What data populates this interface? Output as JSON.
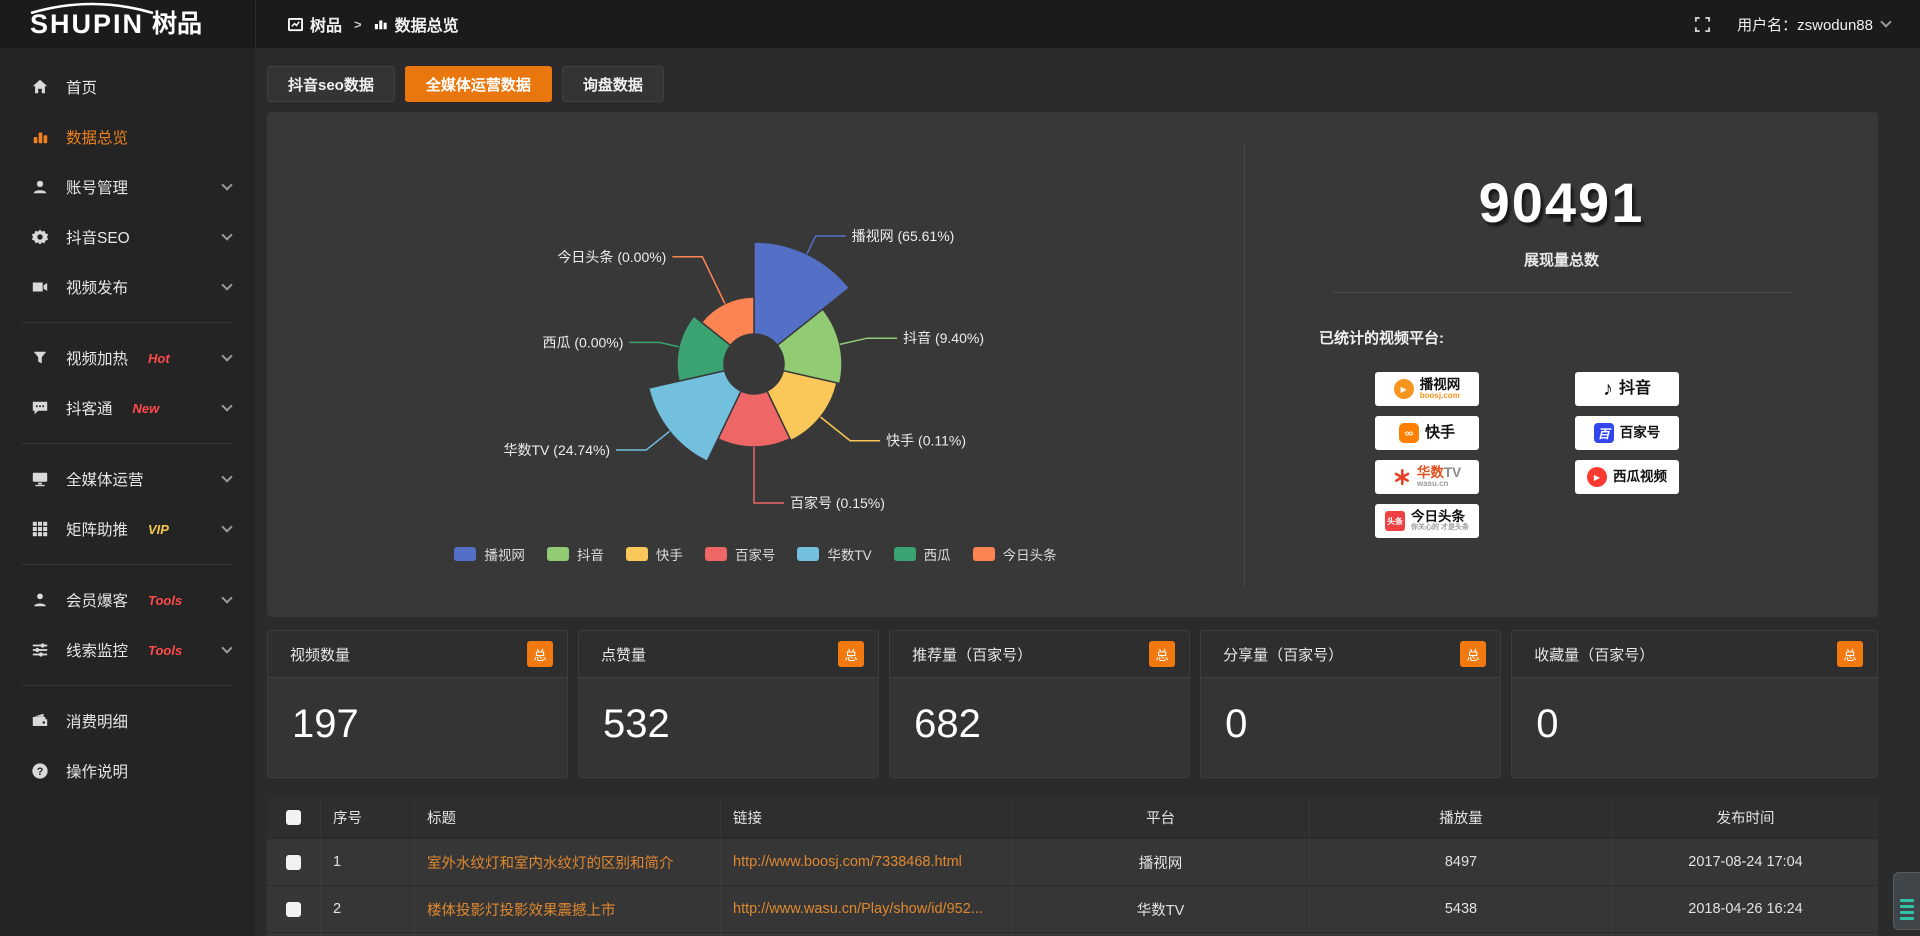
{
  "header": {
    "logo_en": "SHUPIN",
    "logo_cn": "树品",
    "breadcrumb_home": "树品",
    "breadcrumb_sep": ">",
    "breadcrumb_current": "数据总览",
    "user": "用户名：zswodun88"
  },
  "sidebar": {
    "items": [
      {
        "label": "首页"
      },
      {
        "label": "数据总览",
        "active": true
      },
      {
        "label": "账号管理"
      },
      {
        "label": "抖音SEO"
      },
      {
        "label": "视频发布"
      },
      {
        "label": "视频加热",
        "tag": "Hot",
        "tag_color": "#ff4a4a"
      },
      {
        "label": "抖客通",
        "tag": "New",
        "tag_color": "#ff4a4a"
      },
      {
        "label": "全媒体运营"
      },
      {
        "label": "矩阵助推",
        "tag": "VIP",
        "tag_color": "#f2c54b"
      },
      {
        "label": "会员爆客",
        "tag": "Tools",
        "tag_color": "#ff4a4a"
      },
      {
        "label": "线索监控",
        "tag": "Tools",
        "tag_color": "#ff4a4a"
      },
      {
        "label": "消费明细"
      },
      {
        "label": "操作说明"
      }
    ]
  },
  "tabs": [
    {
      "label": "抖音seo数据"
    },
    {
      "label": "全媒体运营数据",
      "active": true
    },
    {
      "label": "询盘数据"
    }
  ],
  "overview": {
    "total": "90491",
    "total_label": "展现量总数",
    "platforms_title": "已统计的视频平台:",
    "platforms_left": [
      {
        "name": "播视网",
        "sub": "boosj.com"
      },
      {
        "name": "快手"
      },
      {
        "name": "华数",
        "name2": "TV",
        "sub": "wasu.cn"
      },
      {
        "name": "今日头条",
        "logo_text": "头条",
        "sub": "你关心的 才是头条"
      }
    ],
    "platforms_right": [
      {
        "name": "抖音"
      },
      {
        "name": "百家号",
        "logo_text": "百"
      },
      {
        "name": "西瓜视频"
      }
    ]
  },
  "chart_data": {
    "type": "pie",
    "subtype": "rose",
    "title": "",
    "series": [
      {
        "name": "播视网",
        "pct": 65.61
      },
      {
        "name": "抖音",
        "pct": 9.4
      },
      {
        "name": "快手",
        "pct": 0.11
      },
      {
        "name": "百家号",
        "pct": 0.15
      },
      {
        "name": "华数TV",
        "pct": 24.74
      },
      {
        "name": "西瓜",
        "pct": 0.0
      },
      {
        "name": "今日头条",
        "pct": 0.0
      }
    ],
    "colors": [
      "#5470c6",
      "#91cc75",
      "#fac858",
      "#ee6666",
      "#73c0de",
      "#3ba272",
      "#fc8452"
    ],
    "legend": [
      "播视网",
      "抖音",
      "快手",
      "百家号",
      "华数TV",
      "西瓜",
      "今日头条"
    ],
    "legend_position": "bottom",
    "label_format": "{name} ({pct}%)",
    "inner_radius": 30,
    "display_radii": [
      122,
      88,
      85,
      83,
      108,
      77,
      67
    ],
    "label_line_len": [
      20,
      28,
      38,
      56,
      30,
      20,
      52
    ]
  },
  "stat_cards": [
    {
      "label": "视频数量",
      "badge": "总",
      "value": "197"
    },
    {
      "label": "点赞量",
      "badge": "总",
      "value": "532"
    },
    {
      "label": "推荐量（百家号）",
      "badge": "总",
      "value": "682"
    },
    {
      "label": "分享量（百家号）",
      "badge": "总",
      "value": "0"
    },
    {
      "label": "收藏量（百家号）",
      "badge": "总",
      "value": "0"
    }
  ],
  "table": {
    "headers": [
      "",
      "序号",
      "标题",
      "链接",
      "平台",
      "播放量",
      "发布时间"
    ],
    "rows": [
      {
        "no": "1",
        "title": "室外水纹灯和室内水纹灯的区别和简介",
        "link": "http://www.boosj.com/7338468.html",
        "platform": "播视网",
        "plays": "8497",
        "time": "2017-08-24 17:04"
      },
      {
        "no": "2",
        "title": "楼体投影灯投影效果震撼上市",
        "link": "http://www.wasu.cn/Play/show/id/952...",
        "platform": "华数TV",
        "plays": "5438",
        "time": "2018-04-26 16:24"
      }
    ]
  },
  "colors": {
    "accent": "#e9770e",
    "sidebar_active": "#f0821e",
    "tag_red": "#ff4a4a",
    "tag_vip": "#f2c54b",
    "link_orange": "#e0882f",
    "widget_teal": "#2fc3a7"
  }
}
